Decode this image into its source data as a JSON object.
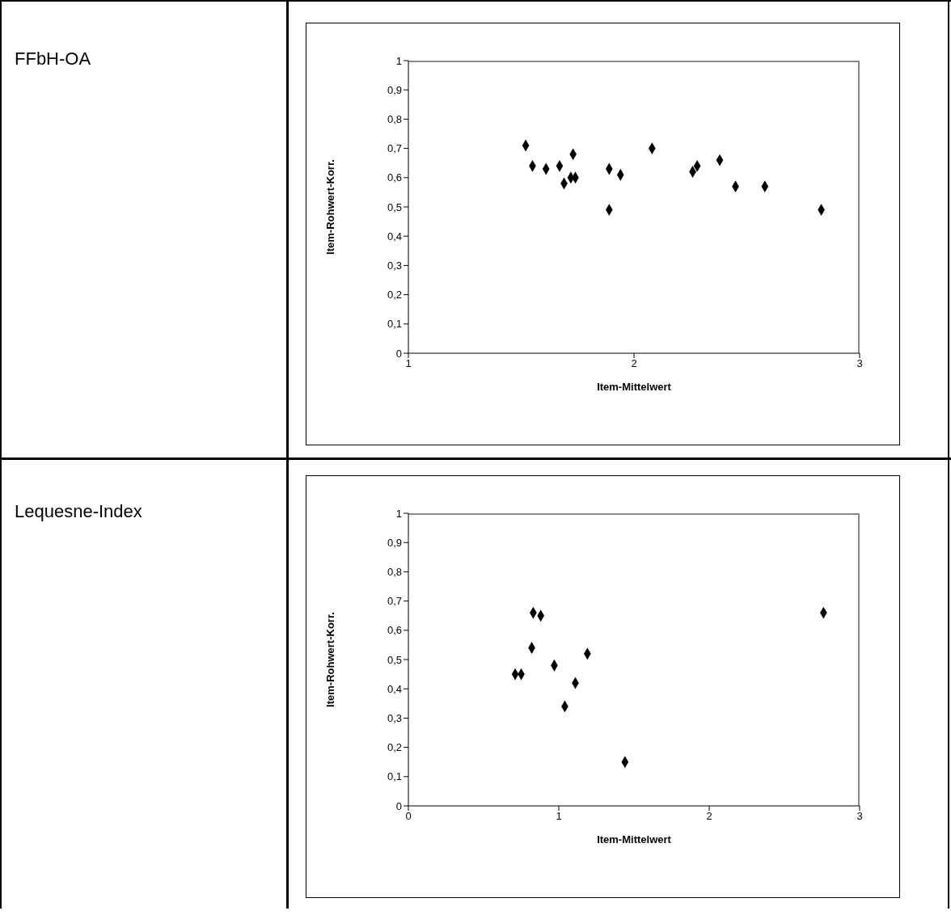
{
  "chart_data": [
    {
      "type": "scatter",
      "annotations": [
        "FFbH-OA"
      ],
      "xlabel": "Item-Mittelwert",
      "ylabel": "Item-Rohwert-Korr.",
      "color": "#000000",
      "marker": "diamond",
      "grid": false,
      "legend": false,
      "x": [
        1.52,
        1.55,
        1.61,
        1.67,
        1.73,
        1.69,
        1.72,
        1.74,
        1.89,
        1.89,
        1.94,
        2.08,
        2.26,
        2.28,
        2.38,
        2.45,
        2.58,
        2.83
      ],
      "values": [
        0.71,
        0.64,
        0.63,
        0.64,
        0.68,
        0.58,
        0.6,
        0.6,
        0.63,
        0.49,
        0.61,
        0.7,
        0.62,
        0.64,
        0.66,
        0.57,
        0.57,
        0.49
      ],
      "xlim": [
        1,
        3
      ],
      "xticks": [
        1,
        2,
        3
      ],
      "ylim": [
        0,
        1
      ],
      "yticks": [
        {
          "value": 0,
          "label": "0"
        },
        {
          "value": 0.1,
          "label": "0,1"
        },
        {
          "value": 0.2,
          "label": "0,2"
        },
        {
          "value": 0.3,
          "label": "0,3"
        },
        {
          "value": 0.4,
          "label": "0,4"
        },
        {
          "value": 0.5,
          "label": "0,5"
        },
        {
          "value": 0.6,
          "label": "0,6"
        },
        {
          "value": 0.7,
          "label": "0,7"
        },
        {
          "value": 0.8,
          "label": "0,8"
        },
        {
          "value": 0.9,
          "label": "0,9"
        },
        {
          "value": 1,
          "label": "1"
        }
      ]
    },
    {
      "type": "scatter",
      "annotations": [
        "Lequesne-Index"
      ],
      "xlabel": "Item-Mittelwert",
      "ylabel": "Item-Rohwert-Korr.",
      "color": "#000000",
      "marker": "diamond",
      "grid": false,
      "legend": false,
      "x": [
        0.83,
        0.88,
        0.82,
        1.19,
        0.97,
        0.71,
        0.75,
        1.11,
        1.04,
        1.44,
        2.76
      ],
      "values": [
        0.66,
        0.65,
        0.54,
        0.52,
        0.48,
        0.45,
        0.45,
        0.42,
        0.34,
        0.15,
        0.66
      ],
      "xlim": [
        0,
        3
      ],
      "xticks": [
        0,
        1,
        2,
        3
      ],
      "ylim": [
        0,
        1
      ],
      "yticks": [
        {
          "value": 0,
          "label": "0"
        },
        {
          "value": 0.1,
          "label": "0,1"
        },
        {
          "value": 0.2,
          "label": "0,2"
        },
        {
          "value": 0.3,
          "label": "0,3"
        },
        {
          "value": 0.4,
          "label": "0,4"
        },
        {
          "value": 0.5,
          "label": "0,5"
        },
        {
          "value": 0.6,
          "label": "0,6"
        },
        {
          "value": 0.7,
          "label": "0,7"
        },
        {
          "value": 0.8,
          "label": "0,8"
        },
        {
          "value": 0.9,
          "label": "0,9"
        },
        {
          "value": 1,
          "label": "1"
        }
      ]
    }
  ]
}
